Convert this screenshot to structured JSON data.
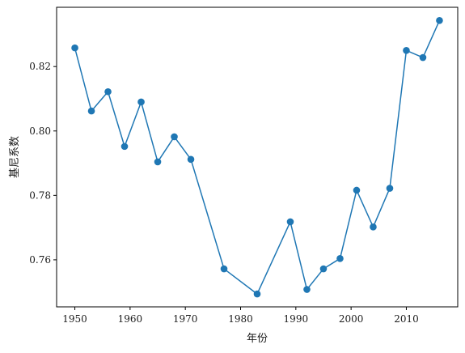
{
  "chart_data": {
    "type": "line",
    "title": "",
    "xlabel": "年份",
    "ylabel": "基尼系数",
    "xlim": [
      1946.7,
      2019.3
    ],
    "ylim": [
      0.7454,
      0.8384
    ],
    "x_ticks": [
      1950,
      1960,
      1970,
      1980,
      1990,
      2000,
      2010
    ],
    "y_ticks": [
      0.76,
      0.78,
      0.8,
      0.82
    ],
    "grid": false,
    "legend": "none",
    "line_color": "#1f77b4",
    "series": [
      {
        "x": [
          1950,
          1953,
          1956,
          1959,
          1962,
          1965,
          1968,
          1971,
          1977,
          1983,
          1989,
          1992,
          1995,
          1998,
          2001,
          2004,
          2007,
          2010,
          2013,
          2016
        ],
        "values": [
          0.8258,
          0.8062,
          0.8122,
          0.7952,
          0.809,
          0.7904,
          0.7982,
          0.7912,
          0.7572,
          0.7494,
          0.7718,
          0.7508,
          0.7572,
          0.7604,
          0.7816,
          0.7702,
          0.7822,
          0.825,
          0.8228,
          0.8343
        ]
      }
    ]
  }
}
